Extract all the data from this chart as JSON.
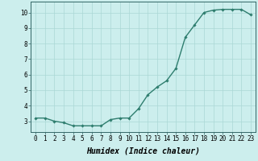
{
  "x": [
    0,
    1,
    2,
    3,
    4,
    5,
    6,
    7,
    8,
    9,
    10,
    11,
    12,
    13,
    14,
    15,
    16,
    17,
    18,
    19,
    20,
    21,
    22,
    23
  ],
  "y": [
    3.2,
    3.2,
    3.0,
    2.9,
    2.7,
    2.7,
    2.7,
    2.7,
    3.1,
    3.2,
    3.2,
    3.8,
    4.7,
    5.2,
    5.6,
    6.4,
    8.4,
    9.2,
    10.0,
    10.15,
    10.2,
    10.2,
    10.2,
    9.85
  ],
  "line_color": "#2e7d6e",
  "marker": "D",
  "marker_size": 1.8,
  "line_width": 1.0,
  "xlabel": "Humidex (Indice chaleur)",
  "xlabel_fontsize": 7,
  "xlabel_fontweight": "bold",
  "xlabel_fontstyle": "italic",
  "xlim": [
    -0.5,
    23.5
  ],
  "ylim": [
    2.3,
    10.7
  ],
  "yticks": [
    3,
    4,
    5,
    6,
    7,
    8,
    9,
    10
  ],
  "xticks": [
    0,
    1,
    2,
    3,
    4,
    5,
    6,
    7,
    8,
    9,
    10,
    11,
    12,
    13,
    14,
    15,
    16,
    17,
    18,
    19,
    20,
    21,
    22,
    23
  ],
  "background_color": "#cceeed",
  "grid_color": "#aad8d5",
  "tick_fontsize": 5.5,
  "spine_color": "#336666"
}
